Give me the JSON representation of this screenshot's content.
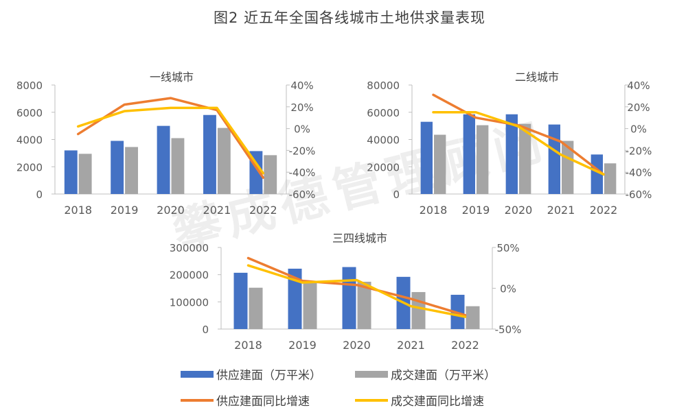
{
  "figure_title": "图2 近五年全国各线城市土地供求量表现",
  "watermark": "攀成德管理顾问",
  "colors": {
    "supply_bar": "#4472C4",
    "deal_bar": "#A5A5A5",
    "supply_line": "#ED7D31",
    "deal_line": "#FFC000"
  },
  "legend": [
    {
      "name": "供应建面（万平米）",
      "kind": "bar",
      "color": "#4472C4"
    },
    {
      "name": "成交建面（万平米）",
      "kind": "bar",
      "color": "#A5A5A5"
    },
    {
      "name": "供应建面同比增速",
      "kind": "line",
      "color": "#ED7D31"
    },
    {
      "name": "成交建面同比增速",
      "kind": "line",
      "color": "#FFC000"
    }
  ],
  "chart_data": [
    {
      "type": "bar+line",
      "title": "一线城市",
      "categories": [
        "2018",
        "2019",
        "2020",
        "2021",
        "2022"
      ],
      "bar_series": [
        {
          "name": "供应建面（万平米）",
          "values": [
            3200,
            3900,
            5000,
            5800,
            3150
          ]
        },
        {
          "name": "成交建面（万平米）",
          "values": [
            2950,
            3450,
            4100,
            4850,
            2850
          ]
        }
      ],
      "line_series": [
        {
          "name": "供应建面同比增速",
          "values": [
            -5,
            22,
            28,
            17,
            -45
          ]
        },
        {
          "name": "成交建面同比增速",
          "values": [
            2,
            16,
            19,
            19,
            -41
          ]
        }
      ],
      "y_left": {
        "ticks": [
          "0",
          "2000",
          "4000",
          "6000",
          "8000"
        ],
        "range": [
          0,
          8000
        ]
      },
      "y_right": {
        "ticks": [
          "-60%",
          "-40%",
          "-20%",
          "0%",
          "20%",
          "40%"
        ],
        "range": [
          -60,
          40
        ]
      }
    },
    {
      "type": "bar+line",
      "title": "二线城市",
      "categories": [
        "2018",
        "2019",
        "2020",
        "2021",
        "2022"
      ],
      "bar_series": [
        {
          "name": "供应建面（万平米）",
          "values": [
            53000,
            58500,
            58500,
            51000,
            29000
          ]
        },
        {
          "name": "成交建面（万平米）",
          "values": [
            43500,
            50500,
            51500,
            39000,
            22500
          ]
        }
      ],
      "line_series": [
        {
          "name": "供应建面同比增速",
          "values": [
            31,
            10,
            3,
            -12,
            -42
          ]
        },
        {
          "name": "成交建面同比增速",
          "values": [
            15,
            15,
            2,
            -24,
            -42
          ]
        }
      ],
      "y_left": {
        "ticks": [
          "0",
          "20000",
          "40000",
          "60000",
          "80000"
        ],
        "range": [
          0,
          80000
        ]
      },
      "y_right": {
        "ticks": [
          "-60%",
          "-40%",
          "-20%",
          "0%",
          "20%",
          "40%"
        ],
        "range": [
          -60,
          40
        ]
      }
    },
    {
      "type": "bar+line",
      "title": "三四线城市",
      "categories": [
        "2018",
        "2019",
        "2020",
        "2021",
        "2022"
      ],
      "bar_series": [
        {
          "name": "供应建面（万平米）",
          "values": [
            207000,
            222000,
            228000,
            192000,
            126000
          ]
        },
        {
          "name": "成交建面（万平米）",
          "values": [
            152000,
            174000,
            174000,
            136000,
            84000
          ]
        }
      ],
      "line_series": [
        {
          "name": "供应建面同比增速",
          "values": [
            37,
            9,
            4,
            -13,
            -33
          ]
        },
        {
          "name": "成交建面同比增速",
          "values": [
            28,
            7,
            10,
            -22,
            -35
          ]
        }
      ],
      "y_left": {
        "ticks": [
          "0",
          "100000",
          "200000",
          "300000"
        ],
        "range": [
          0,
          300000
        ]
      },
      "y_right": {
        "ticks": [
          "-50%",
          "0%",
          "50%"
        ],
        "range": [
          -50,
          50
        ]
      }
    }
  ]
}
